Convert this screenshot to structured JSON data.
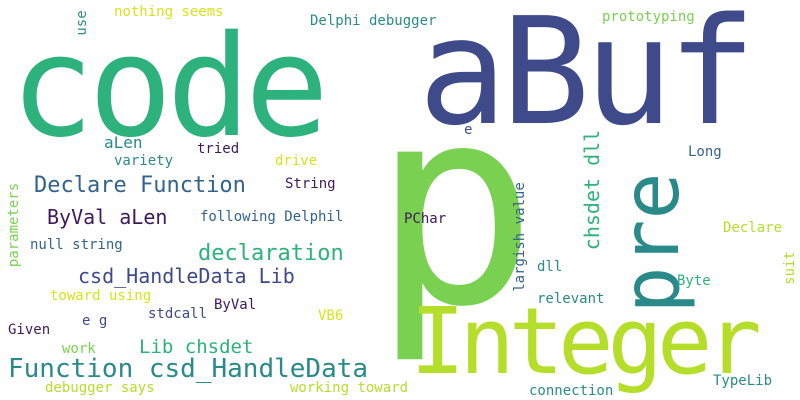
{
  "palette": {
    "purple": "#3e1a5c",
    "indigo": "#3f4a8a",
    "blue": "#33638d",
    "teal": "#2a8a8a",
    "green": "#2db27d",
    "lime": "#7ad151",
    "yellow": "#b5de2b",
    "bright_yellow": "#d8e219"
  },
  "words": [
    "code",
    "aBuf",
    "p",
    "Integer",
    "pre",
    "Function csd_HandleData",
    "Declare Function",
    "declaration",
    "csd_HandleData Lib",
    "ByVal aLen",
    "Lib chsdet",
    "chsdet dll",
    "aLen",
    "Delphi debugger",
    "nothing seems",
    "prototyping",
    "use",
    "variety",
    "tried",
    "drive",
    "String",
    "Long",
    "e",
    "largish value",
    "following Delphil",
    "PChar",
    "Declare",
    "parameters",
    "null string",
    "dll",
    "suit",
    "toward using",
    "ByVal",
    "Byte",
    "relevant",
    "Given",
    "e g",
    "stdcall",
    "VB6",
    "work",
    "debugger says",
    "working toward",
    "connection",
    "TypeLib"
  ]
}
